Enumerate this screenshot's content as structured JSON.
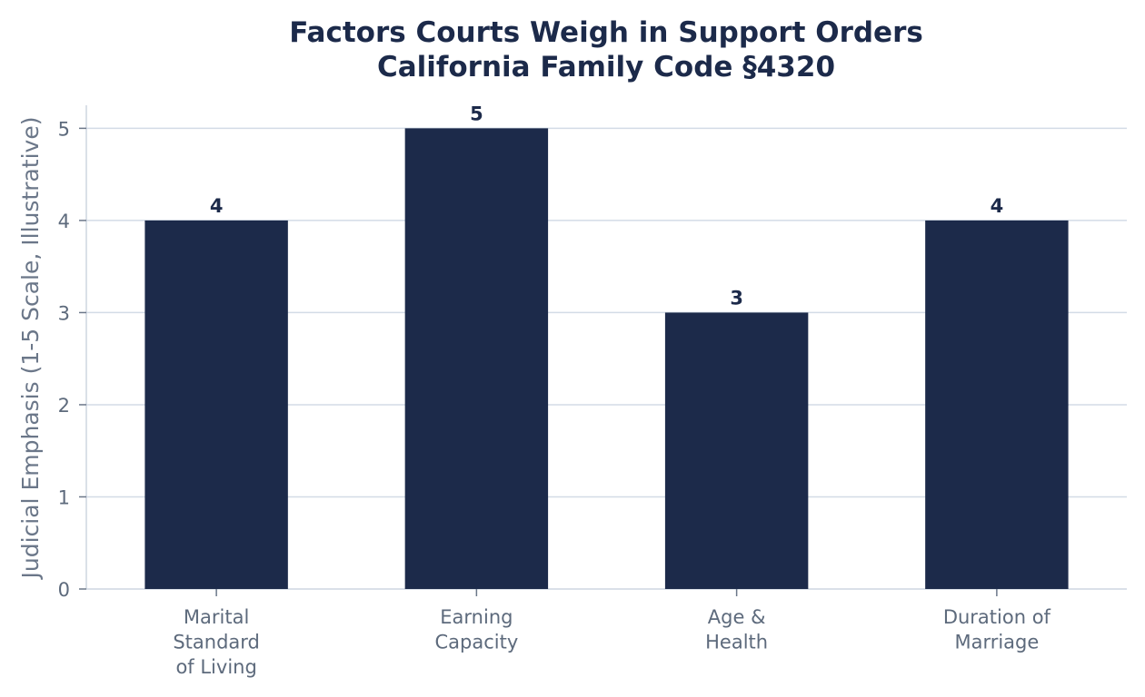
{
  "chart_data": {
    "type": "bar",
    "title": "Factors Courts Weigh in Support Orders",
    "subtitle": "California Family Code §4320",
    "xlabel": "",
    "ylabel": "Judicial Emphasis (1-5 Scale, Illustrative)",
    "categories": [
      [
        "Marital",
        "Standard",
        "of Living"
      ],
      [
        "Earning",
        "Capacity"
      ],
      [
        "Age &",
        "Health"
      ],
      [
        "Duration of",
        "Marriage"
      ]
    ],
    "values": [
      4,
      5,
      3,
      4
    ],
    "data_labels": [
      "4",
      "5",
      "3",
      "4"
    ],
    "ylim": [
      0,
      5.25
    ],
    "yticks": [
      0,
      1,
      2,
      3,
      4,
      5
    ],
    "grid": true,
    "legend": "none",
    "colors": {
      "bar": "#1c2a4a",
      "title": "#1c2a4a",
      "tick": "#5d6a7c",
      "grid": "#d3dbe6"
    }
  }
}
